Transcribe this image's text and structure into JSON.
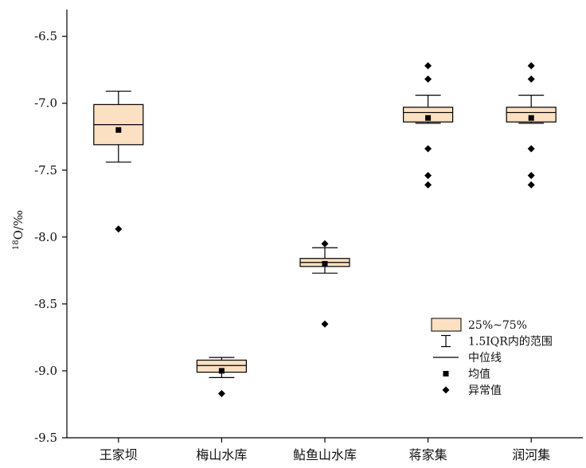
{
  "chart_data": {
    "type": "box",
    "ylabel": {
      "superscript": "18",
      "text": "O/‰"
    },
    "ylim": [
      -9.5,
      -6.3
    ],
    "y_ticks": [
      -6.5,
      -7.0,
      -7.5,
      -8.0,
      -8.5,
      -9.0,
      -9.5
    ],
    "y_tick_labels": [
      "-6.5",
      "-7.0",
      "-7.5",
      "-8.0",
      "-8.5",
      "-9.0",
      "-9.5"
    ],
    "categories": [
      "王家坝",
      "梅山水库",
      "鲇鱼山水库",
      "蒋家集",
      "润河集"
    ],
    "boxes": [
      {
        "category": "王家坝",
        "whisker_low": -7.44,
        "q1": -7.31,
        "median": -7.16,
        "q3": -7.01,
        "whisker_high": -6.91,
        "mean": -7.2,
        "outliers": [
          -7.94
        ]
      },
      {
        "category": "梅山水库",
        "whisker_low": -9.05,
        "q1": -9.01,
        "median": -8.96,
        "q3": -8.92,
        "whisker_high": -8.9,
        "mean": -9.0,
        "outliers": [
          -9.17
        ]
      },
      {
        "category": "鲇鱼山水库",
        "whisker_low": -8.27,
        "q1": -8.22,
        "median": -8.19,
        "q3": -8.16,
        "whisker_high": -8.08,
        "mean": -8.2,
        "outliers": [
          -8.05,
          -8.65
        ]
      },
      {
        "category": "蒋家集",
        "whisker_low": -7.15,
        "q1": -7.14,
        "median": -7.07,
        "q3": -7.03,
        "whisker_high": -6.94,
        "mean": -7.11,
        "outliers": [
          -6.72,
          -6.82,
          -7.34,
          -7.54,
          -7.61
        ]
      },
      {
        "category": "润河集",
        "whisker_low": -7.15,
        "q1": -7.14,
        "median": -7.07,
        "q3": -7.03,
        "whisker_high": -6.94,
        "mean": -7.11,
        "outliers": [
          -6.72,
          -6.82,
          -7.34,
          -7.54,
          -7.61
        ]
      }
    ],
    "legend": {
      "position": "lower-right",
      "items": [
        {
          "key": "box",
          "label": "25%~75%"
        },
        {
          "key": "whisker",
          "label": "1.5IQR内的范围"
        },
        {
          "key": "median",
          "label": "中位线"
        },
        {
          "key": "mean",
          "label": "均值"
        },
        {
          "key": "outlier",
          "label": "异常值"
        }
      ]
    },
    "colors": {
      "box_fill": "#FBE0C2",
      "stroke": "#000000",
      "background": "#FFFFFF"
    }
  }
}
